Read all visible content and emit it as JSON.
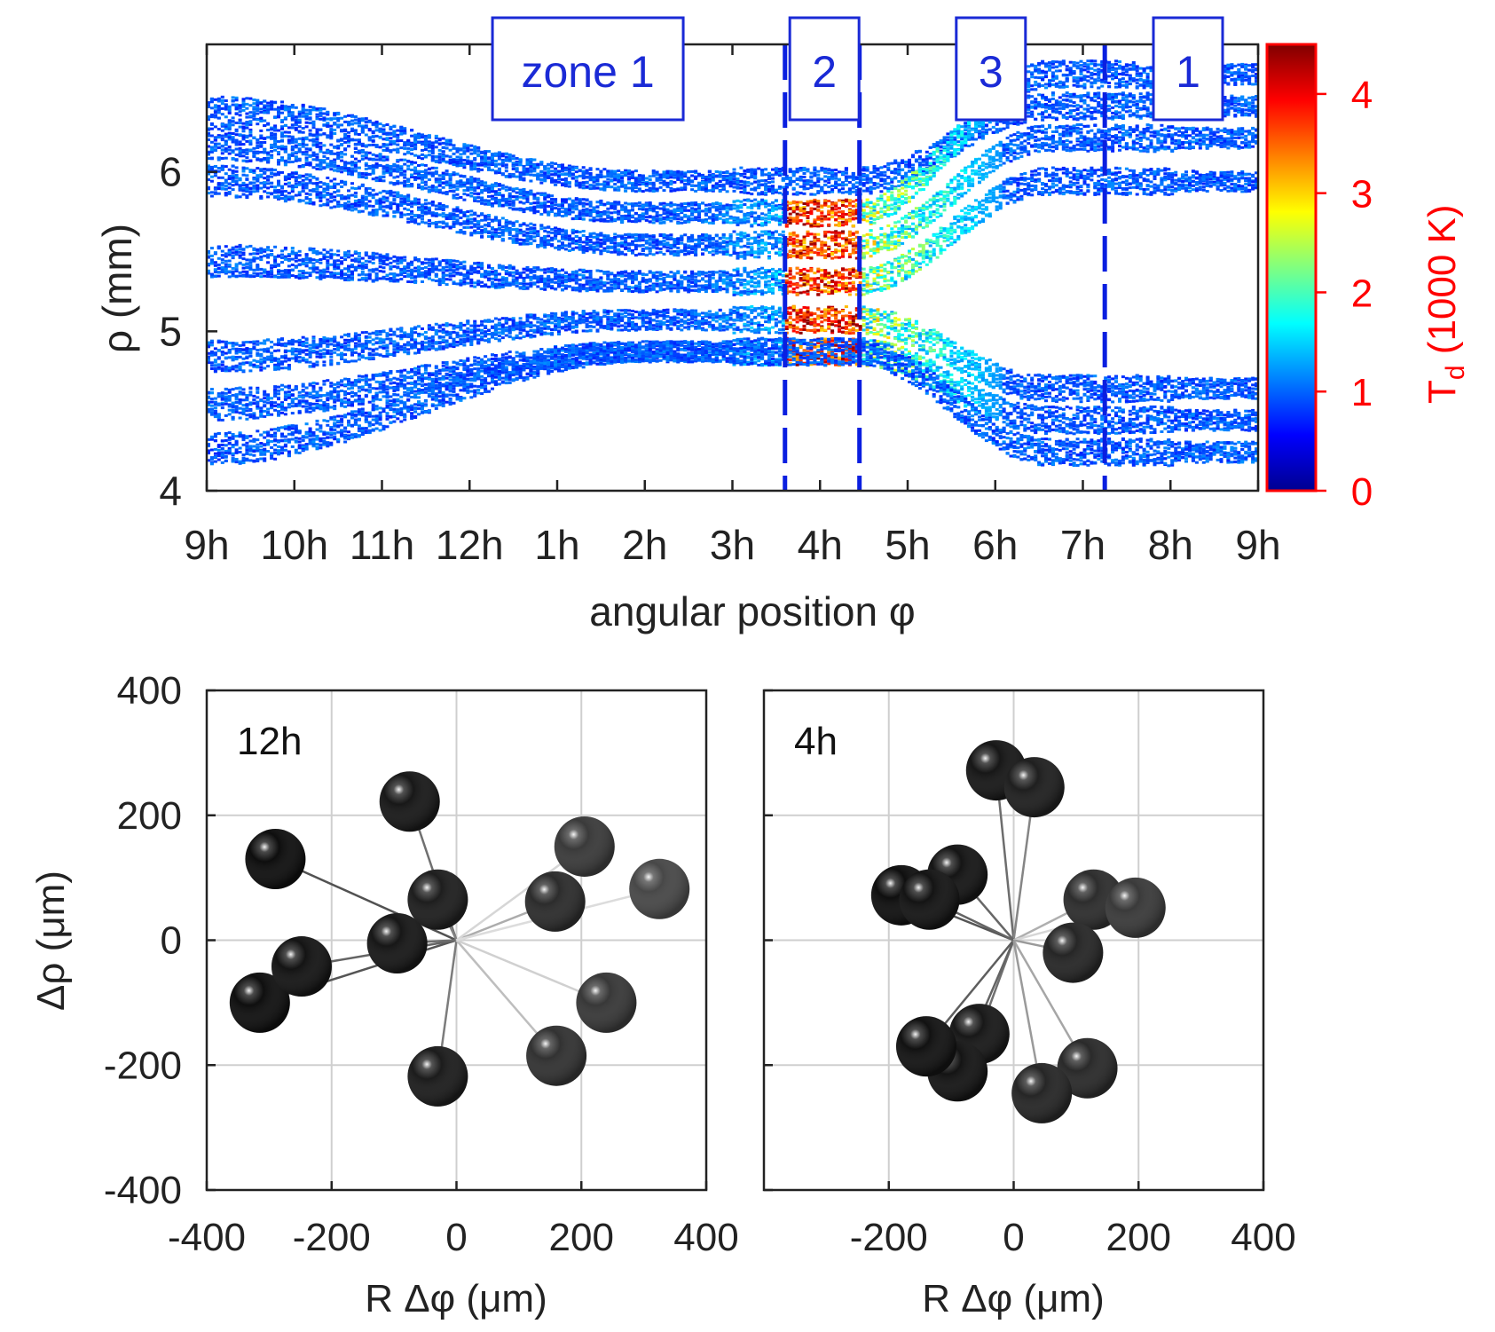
{
  "chart_data": [
    {
      "type": "heatmap",
      "xlabel": "angular position φ",
      "ylabel": "ρ (mm)",
      "x_tick_labels": [
        "9h",
        "10h",
        "11h",
        "12h",
        "1h",
        "2h",
        "3h",
        "4h",
        "5h",
        "6h",
        "7h",
        "8h",
        "9h"
      ],
      "y_ticks": [
        4,
        5,
        6
      ],
      "ylim": [
        4,
        6.8
      ],
      "colorbar": {
        "label": "T_d (1000 K)",
        "label_main": "T",
        "label_sub": "d",
        "label_rest": " (1000 K)",
        "ticks": [
          0,
          1,
          2,
          3,
          4
        ],
        "range": [
          0,
          4.5
        ],
        "color": "#ff0000",
        "colormap": [
          "#00008f",
          "#0000ff",
          "#0080ff",
          "#00ffff",
          "#80ff80",
          "#ffff00",
          "#ff8000",
          "#ff0000",
          "#800000"
        ]
      },
      "zone_boundaries_hours_after_9h": [
        6.6,
        7.45,
        10.25
      ],
      "zone_labels": [
        {
          "text": "zone 1",
          "center_hours_after_9h": 4.35
        },
        {
          "text": "2",
          "center_hours_after_9h": 7.05
        },
        {
          "text": "3",
          "center_hours_after_9h": 8.95
        },
        {
          "text": "1",
          "center_hours_after_9h": 11.2
        }
      ],
      "bands": [
        {
          "start_rho": 6.38,
          "min_rho": 5.95,
          "end_rho": 6.42,
          "hot": false
        },
        {
          "start_rho": 6.18,
          "min_rho": 5.75,
          "end_rho": 6.62,
          "hot": true
        },
        {
          "start_rho": 5.95,
          "min_rho": 5.55,
          "end_rho": 6.22,
          "hot": true
        },
        {
          "start_rho": 5.45,
          "min_rho": 5.32,
          "end_rho": 5.95,
          "hot": true
        },
        {
          "start_rho": 4.85,
          "min_rho": 5.08,
          "end_rho": 4.65,
          "hot": true
        },
        {
          "start_rho": 4.55,
          "min_rho": 4.88,
          "end_rho": 4.45,
          "hot": true
        },
        {
          "start_rho": 4.27,
          "min_rho": 4.88,
          "end_rho": 4.25,
          "hot": false
        }
      ]
    },
    {
      "type": "scatter",
      "panel_label": "12h",
      "xlabel": "R Δφ (μm)",
      "ylabel": "Δρ (μm)",
      "xlim": [
        -400,
        400
      ],
      "ylim": [
        -400,
        400
      ],
      "x_ticks": [
        -400,
        -200,
        0,
        200,
        400
      ],
      "y_ticks": [
        -400,
        -200,
        0,
        200,
        400
      ],
      "grid": true,
      "points": [
        {
          "x": -290,
          "y": 130,
          "shade": "#0e0e0e"
        },
        {
          "x": -315,
          "y": -100,
          "shade": "#0f0f0f"
        },
        {
          "x": -248,
          "y": -42,
          "shade": "#141414"
        },
        {
          "x": -95,
          "y": -5,
          "shade": "#171717"
        },
        {
          "x": -75,
          "y": 222,
          "shade": "#181818"
        },
        {
          "x": -30,
          "y": 65,
          "shade": "#1e1e1e"
        },
        {
          "x": -30,
          "y": -218,
          "shade": "#1c1c1c"
        },
        {
          "x": 158,
          "y": 62,
          "shade": "#2c2c2c"
        },
        {
          "x": 160,
          "y": -185,
          "shade": "#323232"
        },
        {
          "x": 205,
          "y": 150,
          "shade": "#3a3a3a"
        },
        {
          "x": 240,
          "y": -100,
          "shade": "#383838"
        },
        {
          "x": 325,
          "y": 82,
          "shade": "#484848"
        }
      ]
    },
    {
      "type": "scatter",
      "panel_label": "4h",
      "xlabel": "R Δφ (μm)",
      "ylabel": "",
      "xlim": [
        -400,
        400
      ],
      "ylim": [
        -400,
        400
      ],
      "x_ticks": [
        -200,
        0,
        200,
        400
      ],
      "y_ticks": [
        -400,
        -200,
        0,
        200,
        400
      ],
      "grid": true,
      "points": [
        {
          "x": -28,
          "y": 272,
          "shade": "#171717"
        },
        {
          "x": 33,
          "y": 245,
          "shade": "#1f1f1f"
        },
        {
          "x": -90,
          "y": 105,
          "shade": "#151515"
        },
        {
          "x": -180,
          "y": 72,
          "shade": "#0f0f0f"
        },
        {
          "x": -135,
          "y": 65,
          "shade": "#141414"
        },
        {
          "x": 128,
          "y": 65,
          "shade": "#2d2d2d"
        },
        {
          "x": 195,
          "y": 52,
          "shade": "#3a3a3a"
        },
        {
          "x": 95,
          "y": -20,
          "shade": "#262626"
        },
        {
          "x": -55,
          "y": -150,
          "shade": "#181818"
        },
        {
          "x": -90,
          "y": -210,
          "shade": "#141414"
        },
        {
          "x": -140,
          "y": -170,
          "shade": "#121212"
        },
        {
          "x": 118,
          "y": -205,
          "shade": "#2a2a2a"
        },
        {
          "x": 45,
          "y": -245,
          "shade": "#262626"
        }
      ]
    }
  ]
}
